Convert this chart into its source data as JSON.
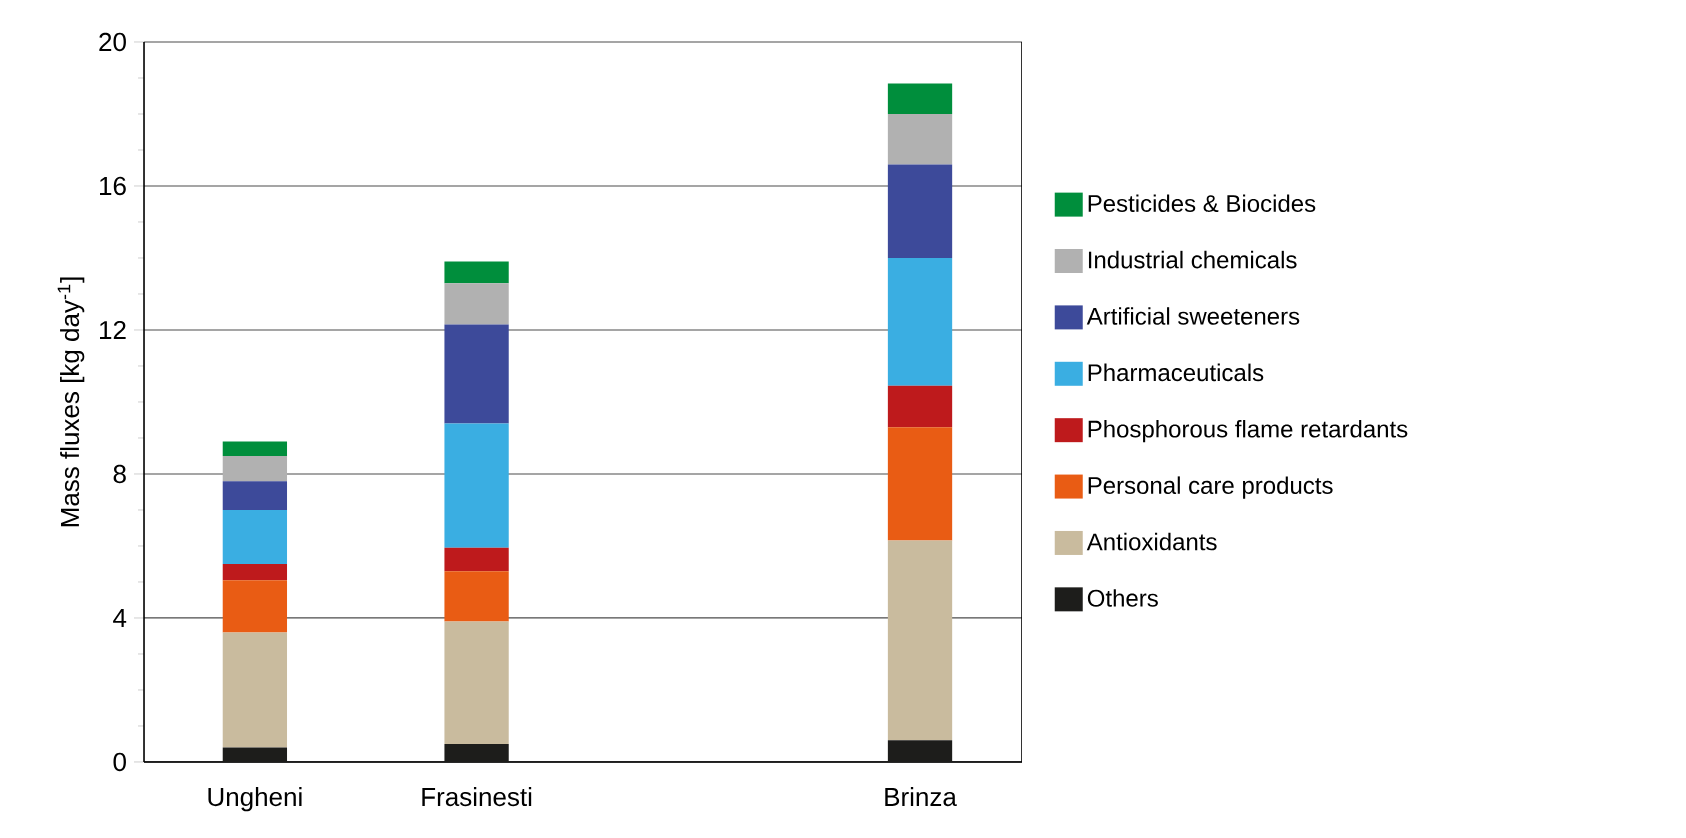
{
  "chart_data": {
    "type": "bar",
    "stacked": true,
    "ylabel": "Mass fluxes [kg day$^{-1}$]",
    "categories": [
      "Ungheni",
      "Frasinesti",
      null,
      "Brinza"
    ],
    "ylim": [
      0,
      20
    ],
    "yticks": [
      0,
      4,
      8,
      12,
      16,
      20
    ],
    "grid": "y",
    "legend": "right",
    "series": [
      {
        "name": "Others",
        "color": "#1d1d1b",
        "values": [
          0.4,
          0.5,
          null,
          0.6
        ]
      },
      {
        "name": "Antioxidants",
        "color": "#c9bb9e",
        "values": [
          3.2,
          3.4,
          null,
          5.55
        ]
      },
      {
        "name": "Personal care products",
        "color": "#e95c14",
        "values": [
          1.45,
          1.4,
          null,
          3.15
        ]
      },
      {
        "name": "Phosphorous flame retardants",
        "color": "#be1a1c",
        "values": [
          0.45,
          0.65,
          null,
          1.15
        ]
      },
      {
        "name": "Pharmaceuticals",
        "color": "#3aaee2",
        "values": [
          1.5,
          3.45,
          null,
          3.55
        ]
      },
      {
        "name": "Artificial sweeteners",
        "color": "#3d4a9a",
        "values": [
          0.8,
          2.75,
          null,
          2.6
        ]
      },
      {
        "name": "Industrial chemicals",
        "color": "#b1b1b1",
        "values": [
          0.7,
          1.15,
          null,
          1.4
        ]
      },
      {
        "name": "Pesticides & Biocides",
        "color": "#008e3c",
        "values": [
          0.4,
          0.6,
          null,
          0.85
        ]
      }
    ]
  }
}
